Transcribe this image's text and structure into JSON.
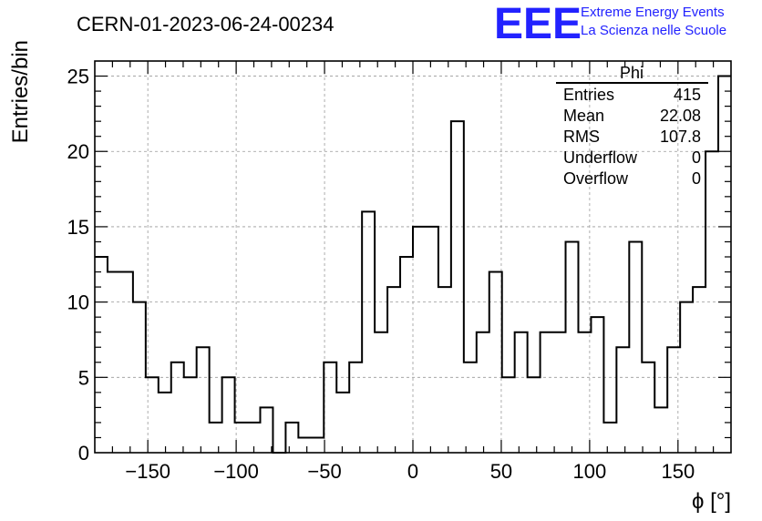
{
  "header": {
    "run_title": "CERN-01-2023-06-24-00234",
    "logo_mark": "EEE",
    "logo_line1": "Extreme Energy Events",
    "logo_line2": "La Scienza nelle Scuole",
    "logo_color": "#2222ff"
  },
  "stats": {
    "title": "Phi",
    "rows": [
      {
        "label": "Entries",
        "value": "415"
      },
      {
        "label": "Mean",
        "value": "22.08"
      },
      {
        "label": "RMS",
        "value": "107.8"
      },
      {
        "label": "Underflow",
        "value": "0"
      },
      {
        "label": "Overflow",
        "value": "0"
      }
    ]
  },
  "chart_data": {
    "type": "histogram",
    "ylabel": "Entries/bin",
    "xlabel": "ϕ [°]",
    "xlim": [
      -180,
      180
    ],
    "ylim": [
      0,
      26
    ],
    "bin_width": 7.2,
    "values": [
      13,
      12,
      12,
      10,
      5,
      4,
      6,
      5,
      7,
      2,
      5,
      2,
      2,
      3,
      0,
      2,
      1,
      1,
      6,
      4,
      6,
      16,
      8,
      11,
      13,
      15,
      15,
      11,
      22,
      6,
      8,
      12,
      5,
      8,
      5,
      8,
      8,
      14,
      8,
      9,
      2,
      7,
      14,
      6,
      3,
      7,
      10,
      11,
      20,
      25
    ],
    "x_ticks": [
      -150,
      -100,
      -50,
      0,
      50,
      100,
      150
    ],
    "x_tick_labels": [
      "−150",
      "−100",
      "−50",
      "0",
      "50",
      "100",
      "150"
    ],
    "y_ticks": [
      0,
      5,
      10,
      15,
      20,
      25
    ],
    "y_tick_labels": [
      "0",
      "5",
      "10",
      "15",
      "20",
      "25"
    ],
    "grid": true,
    "line_color": "#000000",
    "grid_color": "#999999"
  }
}
